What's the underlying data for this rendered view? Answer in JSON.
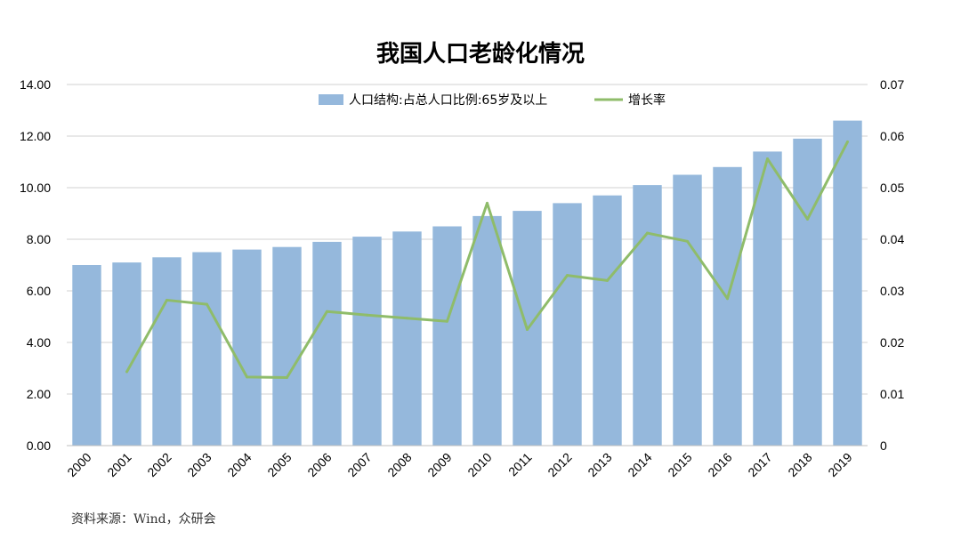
{
  "chart_data": {
    "type": "bar",
    "title": "我国人口老龄化情况",
    "categories": [
      "2000",
      "2001",
      "2002",
      "2003",
      "2004",
      "2005",
      "2006",
      "2007",
      "2008",
      "2009",
      "2010",
      "2011",
      "2012",
      "2013",
      "2014",
      "2015",
      "2016",
      "2017",
      "2018",
      "2019"
    ],
    "series": [
      {
        "name": "人口结构:占总人口比例:65岁及以上",
        "type": "bar",
        "axis": "left",
        "color": "#95b8dc",
        "values": [
          7.0,
          7.1,
          7.3,
          7.5,
          7.6,
          7.7,
          7.9,
          8.1,
          8.3,
          8.5,
          8.9,
          9.1,
          9.4,
          9.7,
          10.1,
          10.5,
          10.8,
          11.4,
          11.9,
          12.6
        ]
      },
      {
        "name": "增长率",
        "type": "line",
        "axis": "right",
        "color": "#8fbc6a",
        "values": [
          null,
          0.0143,
          0.0282,
          0.0274,
          0.0133,
          0.0132,
          0.026,
          0.0253,
          0.0247,
          0.0241,
          0.047,
          0.0225,
          0.033,
          0.032,
          0.0412,
          0.0396,
          0.0285,
          0.0556,
          0.0439,
          0.0589
        ]
      }
    ],
    "ylim_left": [
      0,
      14
    ],
    "yticks_left": [
      "0.00",
      "2.00",
      "4.00",
      "6.00",
      "8.00",
      "10.00",
      "12.00",
      "14.00"
    ],
    "ylim_right": [
      0,
      0.07
    ],
    "yticks_right": [
      "0",
      "0.01",
      "0.02",
      "0.03",
      "0.04",
      "0.05",
      "0.06",
      "0.07"
    ],
    "grid": true,
    "legend_position": "top"
  },
  "source_note": "资料来源：Wind，众研会"
}
